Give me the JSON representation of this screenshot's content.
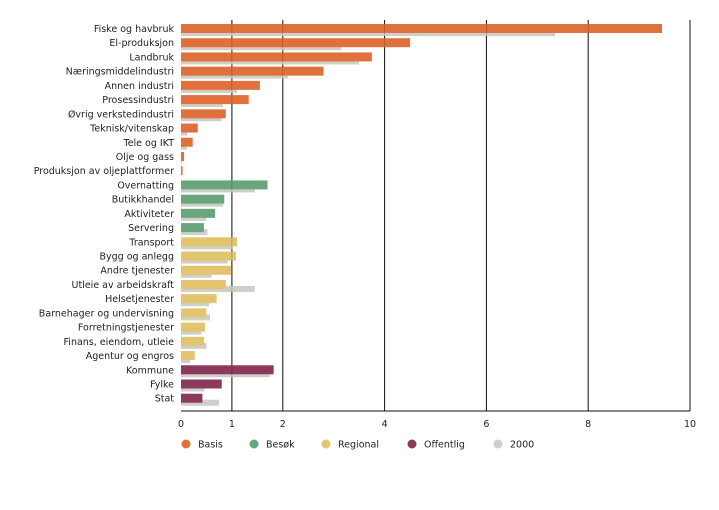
{
  "chart_data": {
    "type": "bar",
    "orientation": "horizontal",
    "title": "",
    "xlabel": "",
    "ylabel": "",
    "xlim": [
      0,
      10
    ],
    "xticks": [
      0,
      1,
      2,
      4,
      6,
      8,
      10
    ],
    "grid": "vertical",
    "legend_position": "bottom",
    "colors": {
      "Basis": "#e0713d",
      "Besøk": "#6aa67d",
      "Regional": "#e3c46f",
      "Offentlig": "#8b3a5c",
      "2000": "#cfcfc9"
    },
    "legend": [
      "Basis",
      "Besøk",
      "Regional",
      "Offentlig",
      "2000"
    ],
    "categories": [
      {
        "label": "Fiske og havbruk",
        "group": "Basis",
        "value": 9.45,
        "value_2000": 7.35
      },
      {
        "label": "El-produksjon",
        "group": "Basis",
        "value": 4.5,
        "value_2000": 3.15
      },
      {
        "label": "Landbruk",
        "group": "Basis",
        "value": 3.75,
        "value_2000": 3.5
      },
      {
        "label": "Næringsmiddelindustri",
        "group": "Basis",
        "value": 2.8,
        "value_2000": 2.1
      },
      {
        "label": "Annen industri",
        "group": "Basis",
        "value": 1.55,
        "value_2000": 1.1
      },
      {
        "label": "Prosessindustri",
        "group": "Basis",
        "value": 1.33,
        "value_2000": 0.82
      },
      {
        "label": "Øvrig verkstedindustri",
        "group": "Basis",
        "value": 0.88,
        "value_2000": 0.8
      },
      {
        "label": "Teknisk/vitenskap",
        "group": "Basis",
        "value": 0.33,
        "value_2000": 0.12
      },
      {
        "label": "Tele og IKT",
        "group": "Basis",
        "value": 0.23,
        "value_2000": 0.12
      },
      {
        "label": "Olje og gass",
        "group": "Basis",
        "value": 0.06,
        "value_2000": 0.02
      },
      {
        "label": "Produksjon av oljeplattformer",
        "group": "Basis",
        "value": 0.03,
        "value_2000": 0.0
      },
      {
        "label": "Overnatting",
        "group": "Besøk",
        "value": 1.7,
        "value_2000": 1.45
      },
      {
        "label": "Butikkhandel",
        "group": "Besøk",
        "value": 0.85,
        "value_2000": 0.83
      },
      {
        "label": "Aktiviteter",
        "group": "Besøk",
        "value": 0.67,
        "value_2000": 0.5
      },
      {
        "label": "Servering",
        "group": "Besøk",
        "value": 0.45,
        "value_2000": 0.52
      },
      {
        "label": "Transport",
        "group": "Regional",
        "value": 1.1,
        "value_2000": 1.02
      },
      {
        "label": "Bygg og anlegg",
        "group": "Regional",
        "value": 1.08,
        "value_2000": 0.92
      },
      {
        "label": "Andre tjenester",
        "group": "Regional",
        "value": 0.98,
        "value_2000": 0.6
      },
      {
        "label": "Utleie av arbeidskraft",
        "group": "Regional",
        "value": 0.88,
        "value_2000": 1.45
      },
      {
        "label": "Helsetjenester",
        "group": "Regional",
        "value": 0.7,
        "value_2000": 0.55
      },
      {
        "label": "Barnehager og undervisning",
        "group": "Regional",
        "value": 0.5,
        "value_2000": 0.57
      },
      {
        "label": "Forretningstjenester",
        "group": "Regional",
        "value": 0.47,
        "value_2000": 0.4
      },
      {
        "label": "Finans, eiendom, utleie",
        "group": "Regional",
        "value": 0.45,
        "value_2000": 0.5
      },
      {
        "label": "Agentur og engros",
        "group": "Regional",
        "value": 0.27,
        "value_2000": 0.18
      },
      {
        "label": "Kommune",
        "group": "Offentlig",
        "value": 1.82,
        "value_2000": 1.75
      },
      {
        "label": "Fylke",
        "group": "Offentlig",
        "value": 0.8,
        "value_2000": 0.46
      },
      {
        "label": "Stat",
        "group": "Offentlig",
        "value": 0.42,
        "value_2000": 0.75
      }
    ]
  }
}
